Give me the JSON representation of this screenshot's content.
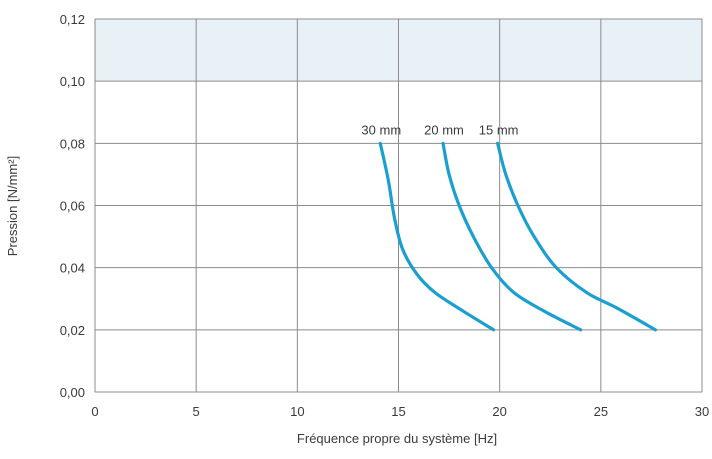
{
  "chart_data": {
    "type": "line",
    "xlabel": "Fréquence propre du système [Hz]",
    "ylabel": "Pression [N/mm²]",
    "xlim": [
      0,
      30
    ],
    "ylim": [
      0,
      0.12
    ],
    "x_ticks": [
      "0",
      "5",
      "10",
      "15",
      "20",
      "25",
      "30"
    ],
    "y_ticks": [
      "0,00",
      "0,02",
      "0,04",
      "0,06",
      "0,08",
      "0,10",
      "0,12"
    ],
    "grid": true,
    "highlight_band": {
      "y_from": 0.1,
      "y_to": 0.12,
      "color": "#e8f1f5"
    },
    "line_color": "#1a9fd0",
    "series": [
      {
        "name": "30 mm",
        "points": [
          [
            14.1,
            0.08
          ],
          [
            14.5,
            0.068
          ],
          [
            14.8,
            0.056
          ],
          [
            15.2,
            0.046
          ],
          [
            15.9,
            0.038
          ],
          [
            16.8,
            0.032
          ],
          [
            18.2,
            0.026
          ],
          [
            19.7,
            0.02
          ]
        ]
      },
      {
        "name": "20 mm",
        "points": [
          [
            17.2,
            0.08
          ],
          [
            17.5,
            0.07
          ],
          [
            18.0,
            0.06
          ],
          [
            18.7,
            0.05
          ],
          [
            19.6,
            0.04
          ],
          [
            20.7,
            0.032
          ],
          [
            22.2,
            0.026
          ],
          [
            24.0,
            0.02
          ]
        ]
      },
      {
        "name": "15 mm",
        "points": [
          [
            19.9,
            0.08
          ],
          [
            20.3,
            0.07
          ],
          [
            20.9,
            0.06
          ],
          [
            21.7,
            0.05
          ],
          [
            22.8,
            0.04
          ],
          [
            24.3,
            0.032
          ],
          [
            25.8,
            0.027
          ],
          [
            27.7,
            0.02
          ]
        ]
      }
    ]
  }
}
